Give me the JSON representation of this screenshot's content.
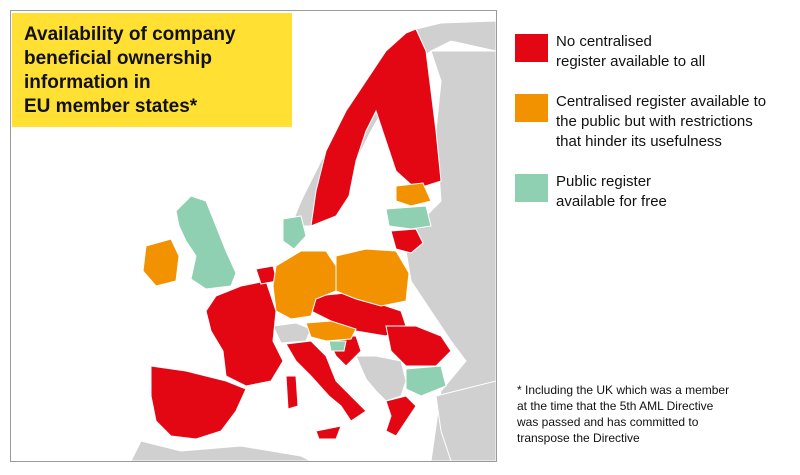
{
  "title": {
    "lines": [
      "Availability of company",
      "beneficial ownership",
      "information in",
      "EU member states*"
    ]
  },
  "colors": {
    "no_register": "#e30613",
    "restricted": "#f39200",
    "public_free": "#8fcfb2",
    "non_eu": "#d0d0d0",
    "sea": "#ffffff",
    "title_bg": "#ffe033"
  },
  "legend": [
    {
      "color": "#e30613",
      "lines": [
        "No centralised",
        "register available to all"
      ]
    },
    {
      "color": "#f39200",
      "lines": [
        "Centralised register available to",
        "the public but with restrictions",
        "that hinder its usefulness"
      ]
    },
    {
      "color": "#8fcfb2",
      "lines": [
        "Public register",
        "available for free"
      ]
    }
  ],
  "footnote": {
    "lines": [
      "* Including the UK which was a member",
      "at the time that the 5th AML Directive",
      "was passed and has committed to",
      "transpose the Directive"
    ]
  }
}
